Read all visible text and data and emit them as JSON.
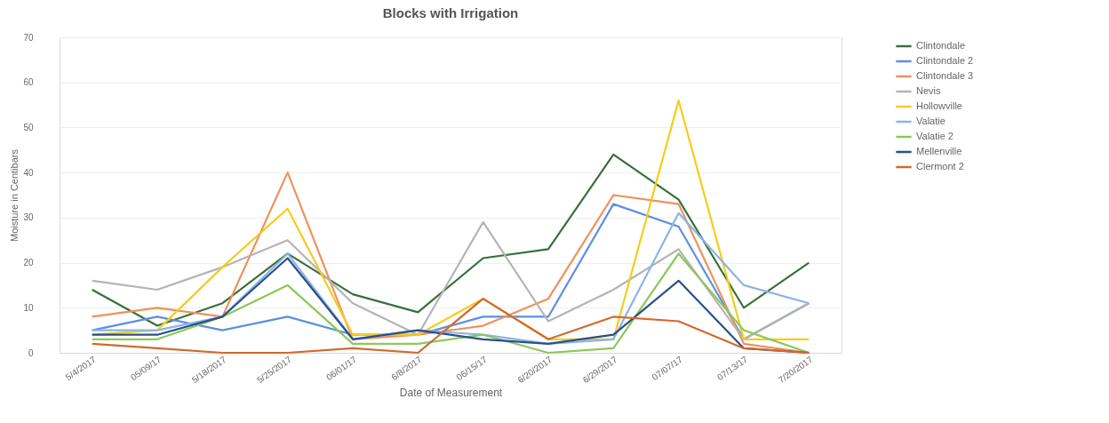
{
  "chart_data": {
    "type": "line",
    "title": "Blocks with Irrigation",
    "xlabel": "Date of Measurement",
    "ylabel": "Moisture in Centibars",
    "categories": [
      "5/4/2017",
      "05/09/17",
      "5/18/2017",
      "5/25/2017",
      "06/01/17",
      "6/8/2017",
      "06/15/17",
      "6/20/2017",
      "6/29/2017",
      "07/07/17",
      "07/13/17",
      "7/20/2017"
    ],
    "series": [
      {
        "name": "Clintondale",
        "color": "#38703a",
        "values": [
          14,
          6,
          11,
          22,
          13,
          9,
          21,
          23,
          44,
          34,
          10,
          20
        ]
      },
      {
        "name": "Clintondale 2",
        "color": "#5b8fe0",
        "values": [
          5,
          8,
          5,
          8,
          4,
          4,
          8,
          8,
          33,
          28,
          3,
          11
        ]
      },
      {
        "name": "Clintondale 3",
        "color": "#f0915a",
        "values": [
          8,
          10,
          8,
          40,
          3,
          4,
          6,
          12,
          35,
          33,
          2,
          0
        ]
      },
      {
        "name": "Nevis",
        "color": "#b4b4b4",
        "values": [
          16,
          14,
          19,
          25,
          11,
          4,
          29,
          7,
          14,
          23,
          3,
          11
        ]
      },
      {
        "name": "Hollowville",
        "color": "#f5cc1e",
        "values": [
          4,
          5,
          19,
          32,
          4,
          4,
          12,
          3,
          3,
          56,
          3,
          3
        ]
      },
      {
        "name": "Valatie",
        "color": "#8cb4e6",
        "values": [
          5,
          5,
          8,
          22,
          3,
          5,
          4,
          2,
          3,
          31,
          15,
          11
        ]
      },
      {
        "name": "Valatie 2",
        "color": "#8cc85a",
        "values": [
          3,
          3,
          8,
          15,
          2,
          2,
          4,
          0,
          1,
          22,
          5,
          0
        ]
      },
      {
        "name": "Mellenville",
        "color": "#2a4f8c",
        "values": [
          4,
          4,
          8,
          21,
          3,
          5,
          3,
          2,
          4,
          16,
          1,
          0
        ]
      },
      {
        "name": "Clermont 2",
        "color": "#d2692d",
        "values": [
          2,
          1,
          0,
          0,
          1,
          0,
          12,
          3,
          8,
          7,
          1,
          0
        ]
      }
    ],
    "ylim": [
      0,
      70
    ],
    "yticks": [
      0,
      10,
      20,
      30,
      40,
      50,
      60,
      70
    ],
    "grid": "y",
    "legend": "right",
    "marker": "none",
    "line_style": "solid"
  }
}
